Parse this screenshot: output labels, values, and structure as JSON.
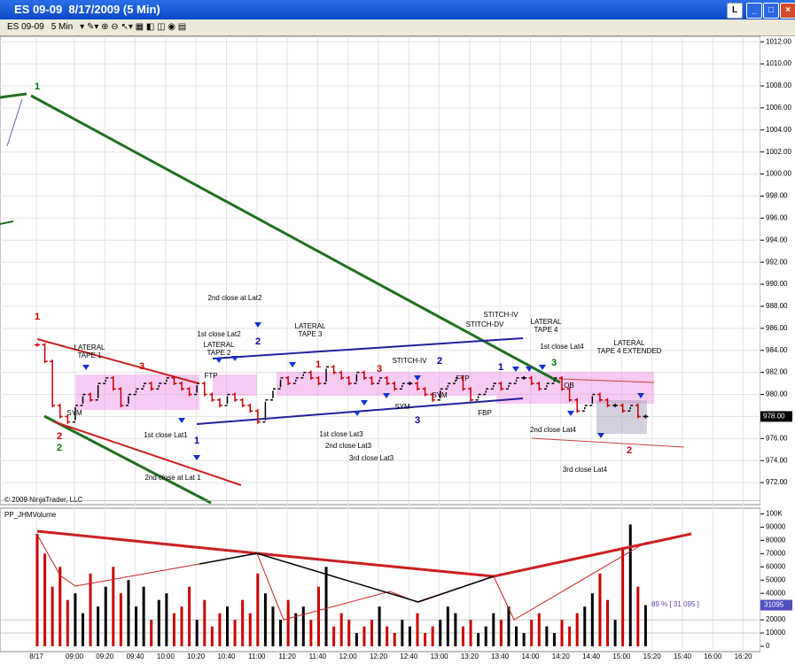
{
  "window": {
    "title": "ES 09-09  8/17/2009 (5 Min)",
    "button": "L"
  },
  "toolbar": {
    "instrument": "ES 09-09",
    "interval": "5 Min"
  },
  "chart_data": [
    {
      "type": "ohlc",
      "ylim": [
        970,
        1012.5
      ],
      "yticks": [
        {
          "value": 972,
          "label": "972.00"
        },
        {
          "value": 974,
          "label": "974.00"
        },
        {
          "value": 976,
          "label": "976.00"
        },
        {
          "value": 978,
          "label": "978.00"
        },
        {
          "value": 980,
          "label": "980.00"
        },
        {
          "value": 982,
          "label": "982.00"
        },
        {
          "value": 984,
          "label": "984.00"
        },
        {
          "value": 986,
          "label": "986.00"
        },
        {
          "value": 988,
          "label": "988.00"
        },
        {
          "value": 990,
          "label": "990.00"
        },
        {
          "value": 992,
          "label": "992.00"
        },
        {
          "value": 994,
          "label": "994.00"
        },
        {
          "value": 996,
          "label": "996.00"
        },
        {
          "value": 998,
          "label": "998.00"
        },
        {
          "value": 1000,
          "label": "1000.00"
        },
        {
          "value": 1002,
          "label": "1002.00"
        },
        {
          "value": 1004,
          "label": "1004.00"
        },
        {
          "value": 1006,
          "label": "1006.00"
        },
        {
          "value": 1008,
          "label": "1008.00"
        },
        {
          "value": 1010,
          "label": "1010.00"
        },
        {
          "value": 1012,
          "label": "1012.00"
        }
      ],
      "values": [
        984.5,
        983,
        979,
        978,
        977.5,
        979,
        980,
        979.5,
        981,
        981.5,
        980.5,
        979,
        980,
        980.5,
        981,
        980.5,
        981,
        981.5,
        981,
        980.5,
        980,
        981,
        980,
        979.5,
        979,
        980,
        979.5,
        979,
        978.5,
        977.5,
        979.5,
        980.5,
        981.5,
        981,
        981.5,
        982,
        981.5,
        981,
        982.5,
        982,
        981.5,
        981,
        982,
        981.5,
        981,
        981.5,
        981,
        980.5,
        981,
        981,
        980.5,
        980,
        979.5,
        980.5,
        981,
        981.5,
        980.5,
        979.5,
        980,
        980.5,
        981,
        980.5,
        981,
        981.5,
        981.5,
        981,
        980.5,
        981,
        981.5,
        980.5,
        979.5,
        978.5,
        979,
        980,
        979.5,
        979,
        979,
        978.5,
        979,
        978,
        978
      ],
      "up_color": "#000000",
      "down_color": "#cc0000",
      "last": {
        "value": 978,
        "label": "978.00"
      },
      "copyright": "© 2009 NinjaTrader, LLC"
    },
    {
      "type": "bar",
      "name": "PP_JHMVolume",
      "ylim": [
        0,
        103000
      ],
      "yticks": [
        {
          "value": 100000,
          "label": "100K"
        },
        90000,
        80000,
        70000,
        60000,
        50000,
        40000,
        30000,
        20000,
        10000,
        0
      ],
      "values": [
        85000,
        70000,
        45000,
        60000,
        35000,
        40000,
        25000,
        55000,
        30000,
        45000,
        60000,
        40000,
        50000,
        30000,
        45000,
        20000,
        35000,
        40000,
        25000,
        30000,
        45000,
        20000,
        35000,
        15000,
        25000,
        30000,
        20000,
        35000,
        25000,
        55000,
        40000,
        30000,
        20000,
        35000,
        25000,
        30000,
        20000,
        45000,
        60000,
        15000,
        25000,
        20000,
        10000,
        15000,
        20000,
        30000,
        15000,
        10000,
        20000,
        15000,
        25000,
        10000,
        15000,
        20000,
        30000,
        25000,
        15000,
        20000,
        10000,
        15000,
        25000,
        20000,
        30000,
        15000,
        10000,
        20000,
        25000,
        15000,
        10000,
        20000,
        15000,
        25000,
        30000,
        40000,
        55000,
        35000,
        20000,
        75000,
        92000,
        45000,
        31095
      ],
      "last": {
        "value": 31095,
        "label": "31095"
      },
      "readout": "89 % [ 31 095 ]",
      "xlabels": [
        "8/17",
        "09:00",
        "09:20",
        "09:40",
        "10:00",
        "10:20",
        "10:40",
        "11:00",
        "11:20",
        "11:40",
        "12:00",
        "12:20",
        "12:40",
        "13:00",
        "13:20",
        "13:40",
        "14:00",
        "14:20",
        "14:40",
        "15:00",
        "15:20",
        "15:40",
        "16:00",
        "16:20"
      ]
    }
  ],
  "annotations": [
    {
      "lines": [
        "LATERAL",
        "TAPE 1"
      ],
      "color": "#000000"
    },
    {
      "lines": [
        "SYM"
      ],
      "color": "#000000"
    },
    {
      "lines": [
        "3"
      ],
      "color": "#cc0000"
    },
    {
      "lines": [
        "1st close Lat1"
      ],
      "color": "#000000"
    },
    {
      "lines": [
        "2nd close at Lat 1"
      ],
      "color": "#000000"
    },
    {
      "lines": [
        "2nd close at Lat2"
      ],
      "color": "#000000"
    },
    {
      "lines": [
        "1st close Lat2"
      ],
      "color": "#000000"
    },
    {
      "lines": [
        "LATERAL",
        "TAPE 2"
      ],
      "color": "#000000"
    },
    {
      "lines": [
        "FTP"
      ],
      "color": "#000000"
    },
    {
      "lines": [
        "LATERAL",
        "TAPE 3"
      ],
      "color": "#000000"
    },
    {
      "lines": [
        "1st close Lat3"
      ],
      "color": "#000000"
    },
    {
      "lines": [
        "2nd close Lat3"
      ],
      "color": "#000000"
    },
    {
      "lines": [
        "3rd close Lat3"
      ],
      "color": "#000000"
    },
    {
      "lines": [
        "STITCH-IV"
      ],
      "color": "#000000"
    },
    {
      "lines": [
        "SYM"
      ],
      "color": "#000000"
    },
    {
      "lines": [
        "SYM"
      ],
      "color": "#000000"
    },
    {
      "lines": [
        "FTP"
      ],
      "color": "#000000"
    },
    {
      "lines": [
        "STITCH-DV"
      ],
      "color": "#000000"
    },
    {
      "lines": [
        "STITCH-IV"
      ],
      "color": "#000000"
    },
    {
      "lines": [
        "LATERAL",
        "TAPE 4"
      ],
      "color": "#000000"
    },
    {
      "lines": [
        "1st close Lat4"
      ],
      "color": "#000000"
    },
    {
      "lines": [
        "FBP"
      ],
      "color": "#000000"
    },
    {
      "lines": [
        "OB"
      ],
      "color": "#000000"
    },
    {
      "lines": [
        "2nd close Lat4"
      ],
      "color": "#000000"
    },
    {
      "lines": [
        "3rd close Lat4"
      ],
      "color": "#000000"
    },
    {
      "lines": [
        "LATERAL",
        "TAPE 4 EXTENDED"
      ],
      "color": "#000000"
    },
    {
      "lines": [
        "1"
      ],
      "color": "#cc0000"
    },
    {
      "lines": [
        "2"
      ],
      "color": "#cc0000"
    },
    {
      "lines": [
        "2"
      ],
      "color": "#007700"
    },
    {
      "lines": [
        "1"
      ],
      "color": "#007700"
    },
    {
      "lines": [
        "2"
      ],
      "color": "#0000aa"
    },
    {
      "lines": [
        "1"
      ],
      "color": "#0000aa"
    },
    {
      "lines": [
        "3"
      ],
      "color": "#0000aa"
    },
    {
      "lines": [
        "3"
      ],
      "color": "#007700"
    },
    {
      "lines": [
        "2"
      ],
      "color": "#cc0000"
    },
    {
      "lines": [
        "1"
      ],
      "color": "#cc0000"
    },
    {
      "lines": [
        "3"
      ],
      "color": "#cc0000"
    },
    {
      "lines": [
        "2"
      ],
      "color": "#0000aa"
    },
    {
      "lines": [
        "1"
      ],
      "color": "#0000aa"
    }
  ]
}
